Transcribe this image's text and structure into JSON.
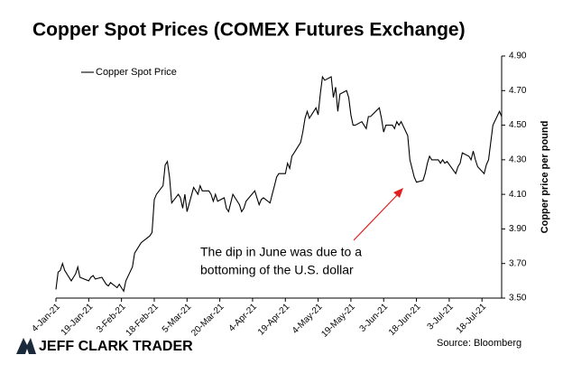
{
  "chart_data": {
    "type": "line",
    "title": "Copper Spot Prices (COMEX Futures Exchange)",
    "y_axis_label": "Copper price per pound",
    "annotation": [
      "The dip in June was due to a",
      "bottoming of the U.S. dollar"
    ],
    "source": "Source: Bloomberg",
    "brand": "JEFF CLARK TRADER",
    "legend_position": "upper left",
    "y_axis_side": "right",
    "x": [
      "2021-01-04",
      "2021-01-05",
      "2021-01-06",
      "2021-01-07",
      "2021-01-08",
      "2021-01-11",
      "2021-01-12",
      "2021-01-13",
      "2021-01-14",
      "2021-01-15",
      "2021-01-19",
      "2021-01-20",
      "2021-01-21",
      "2021-01-22",
      "2021-01-25",
      "2021-01-26",
      "2021-01-27",
      "2021-01-28",
      "2021-01-29",
      "2021-02-01",
      "2021-02-02",
      "2021-02-03",
      "2021-02-04",
      "2021-02-05",
      "2021-02-08",
      "2021-02-09",
      "2021-02-10",
      "2021-02-11",
      "2021-02-12",
      "2021-02-16",
      "2021-02-17",
      "2021-02-18",
      "2021-02-19",
      "2021-02-22",
      "2021-02-23",
      "2021-02-24",
      "2021-02-25",
      "2021-02-26",
      "2021-03-01",
      "2021-03-02",
      "2021-03-03",
      "2021-03-04",
      "2021-03-05",
      "2021-03-08",
      "2021-03-09",
      "2021-03-10",
      "2021-03-11",
      "2021-03-12",
      "2021-03-15",
      "2021-03-16",
      "2021-03-17",
      "2021-03-18",
      "2021-03-19",
      "2021-03-22",
      "2021-03-23",
      "2021-03-24",
      "2021-03-25",
      "2021-03-26",
      "2021-03-29",
      "2021-03-30",
      "2021-03-31",
      "2021-04-01",
      "2021-04-05",
      "2021-04-06",
      "2021-04-07",
      "2021-04-08",
      "2021-04-09",
      "2021-04-12",
      "2021-04-13",
      "2021-04-14",
      "2021-04-15",
      "2021-04-16",
      "2021-04-19",
      "2021-04-20",
      "2021-04-21",
      "2021-04-22",
      "2021-04-23",
      "2021-04-26",
      "2021-04-27",
      "2021-04-28",
      "2021-04-29",
      "2021-04-30",
      "2021-05-03",
      "2021-05-04",
      "2021-05-05",
      "2021-05-06",
      "2021-05-07",
      "2021-05-10",
      "2021-05-11",
      "2021-05-12",
      "2021-05-13",
      "2021-05-14",
      "2021-05-17",
      "2021-05-18",
      "2021-05-19",
      "2021-05-20",
      "2021-05-21",
      "2021-05-24",
      "2021-05-25",
      "2021-05-26",
      "2021-05-27",
      "2021-05-28",
      "2021-06-01",
      "2021-06-02",
      "2021-06-03",
      "2021-06-04",
      "2021-06-07",
      "2021-06-08",
      "2021-06-09",
      "2021-06-10",
      "2021-06-11",
      "2021-06-14",
      "2021-06-15",
      "2021-06-16",
      "2021-06-17",
      "2021-06-18",
      "2021-06-21",
      "2021-06-22",
      "2021-06-23",
      "2021-06-24",
      "2021-06-25",
      "2021-06-28",
      "2021-06-29",
      "2021-06-30",
      "2021-07-01",
      "2021-07-02",
      "2021-07-06",
      "2021-07-07",
      "2021-07-08",
      "2021-07-09",
      "2021-07-12",
      "2021-07-13",
      "2021-07-14",
      "2021-07-15",
      "2021-07-16",
      "2021-07-19",
      "2021-07-20",
      "2021-07-21",
      "2021-07-22",
      "2021-07-23",
      "2021-07-26",
      "2021-07-27"
    ],
    "series": [
      {
        "name": "Copper Spot Price",
        "color": "#000000",
        "values": [
          3.55,
          3.65,
          3.66,
          3.7,
          3.66,
          3.6,
          3.62,
          3.64,
          3.68,
          3.62,
          3.6,
          3.62,
          3.63,
          3.61,
          3.62,
          3.6,
          3.58,
          3.57,
          3.59,
          3.56,
          3.58,
          3.56,
          3.54,
          3.6,
          3.68,
          3.76,
          3.78,
          3.8,
          3.82,
          3.86,
          3.88,
          4.07,
          4.1,
          4.15,
          4.27,
          4.29,
          4.2,
          4.05,
          4.1,
          4.08,
          4.02,
          4.1,
          4.0,
          4.14,
          4.12,
          4.1,
          4.15,
          4.12,
          4.12,
          4.1,
          4.06,
          4.1,
          4.06,
          4.08,
          4.02,
          4.0,
          4.05,
          4.1,
          4.04,
          4.0,
          4.02,
          4.06,
          4.12,
          4.08,
          4.04,
          4.07,
          4.08,
          4.05,
          4.1,
          4.15,
          4.2,
          4.22,
          4.22,
          4.28,
          4.25,
          4.32,
          4.34,
          4.4,
          4.46,
          4.54,
          4.58,
          4.54,
          4.6,
          4.56,
          4.68,
          4.78,
          4.76,
          4.78,
          4.66,
          4.72,
          4.58,
          4.68,
          4.7,
          4.66,
          4.56,
          4.5,
          4.5,
          4.52,
          4.5,
          4.48,
          4.55,
          4.55,
          4.6,
          4.54,
          4.46,
          4.5,
          4.5,
          4.48,
          4.52,
          4.5,
          4.52,
          4.44,
          4.3,
          4.25,
          4.2,
          4.17,
          4.18,
          4.22,
          4.28,
          4.32,
          4.3,
          4.3,
          4.28,
          4.3,
          4.28,
          4.29,
          4.22,
          4.26,
          4.28,
          4.34,
          4.32,
          4.3,
          4.35,
          4.3,
          4.26,
          4.22,
          4.27,
          4.3,
          4.4,
          4.5,
          4.58,
          4.55
        ]
      }
    ],
    "xlim": [
      "2021-01-04",
      "2021-07-27"
    ],
    "xticks": [
      {
        "value": "2021-01-04",
        "label": "4-Jan-21"
      },
      {
        "value": "2021-01-19",
        "label": "19-Jan-21"
      },
      {
        "value": "2021-02-03",
        "label": "3-Feb-21"
      },
      {
        "value": "2021-02-18",
        "label": "18-Feb-21"
      },
      {
        "value": "2021-03-05",
        "label": "5-Mar-21"
      },
      {
        "value": "2021-03-20",
        "label": "20-Mar-21"
      },
      {
        "value": "2021-04-04",
        "label": "4-Apr-21"
      },
      {
        "value": "2021-04-19",
        "label": "19-Apr-21"
      },
      {
        "value": "2021-05-04",
        "label": "4-May-21"
      },
      {
        "value": "2021-05-19",
        "label": "19-May-21"
      },
      {
        "value": "2021-06-03",
        "label": "3-Jun-21"
      },
      {
        "value": "2021-06-18",
        "label": "18-Jun-21"
      },
      {
        "value": "2021-07-03",
        "label": "3-Jul-21"
      },
      {
        "value": "2021-07-18",
        "label": "18-Jul-21"
      }
    ],
    "ylim": [
      3.5,
      4.9
    ],
    "yticks": [
      {
        "value": 3.5,
        "label": "3.50"
      },
      {
        "value": 3.7,
        "label": "3.70"
      },
      {
        "value": 3.9,
        "label": "3.90"
      },
      {
        "value": 4.1,
        "label": "4.10"
      },
      {
        "value": 4.3,
        "label": "4.30"
      },
      {
        "value": 4.5,
        "label": "4.50"
      },
      {
        "value": 4.7,
        "label": "4.70"
      },
      {
        "value": 4.9,
        "label": "4.90"
      }
    ],
    "grid": false
  }
}
